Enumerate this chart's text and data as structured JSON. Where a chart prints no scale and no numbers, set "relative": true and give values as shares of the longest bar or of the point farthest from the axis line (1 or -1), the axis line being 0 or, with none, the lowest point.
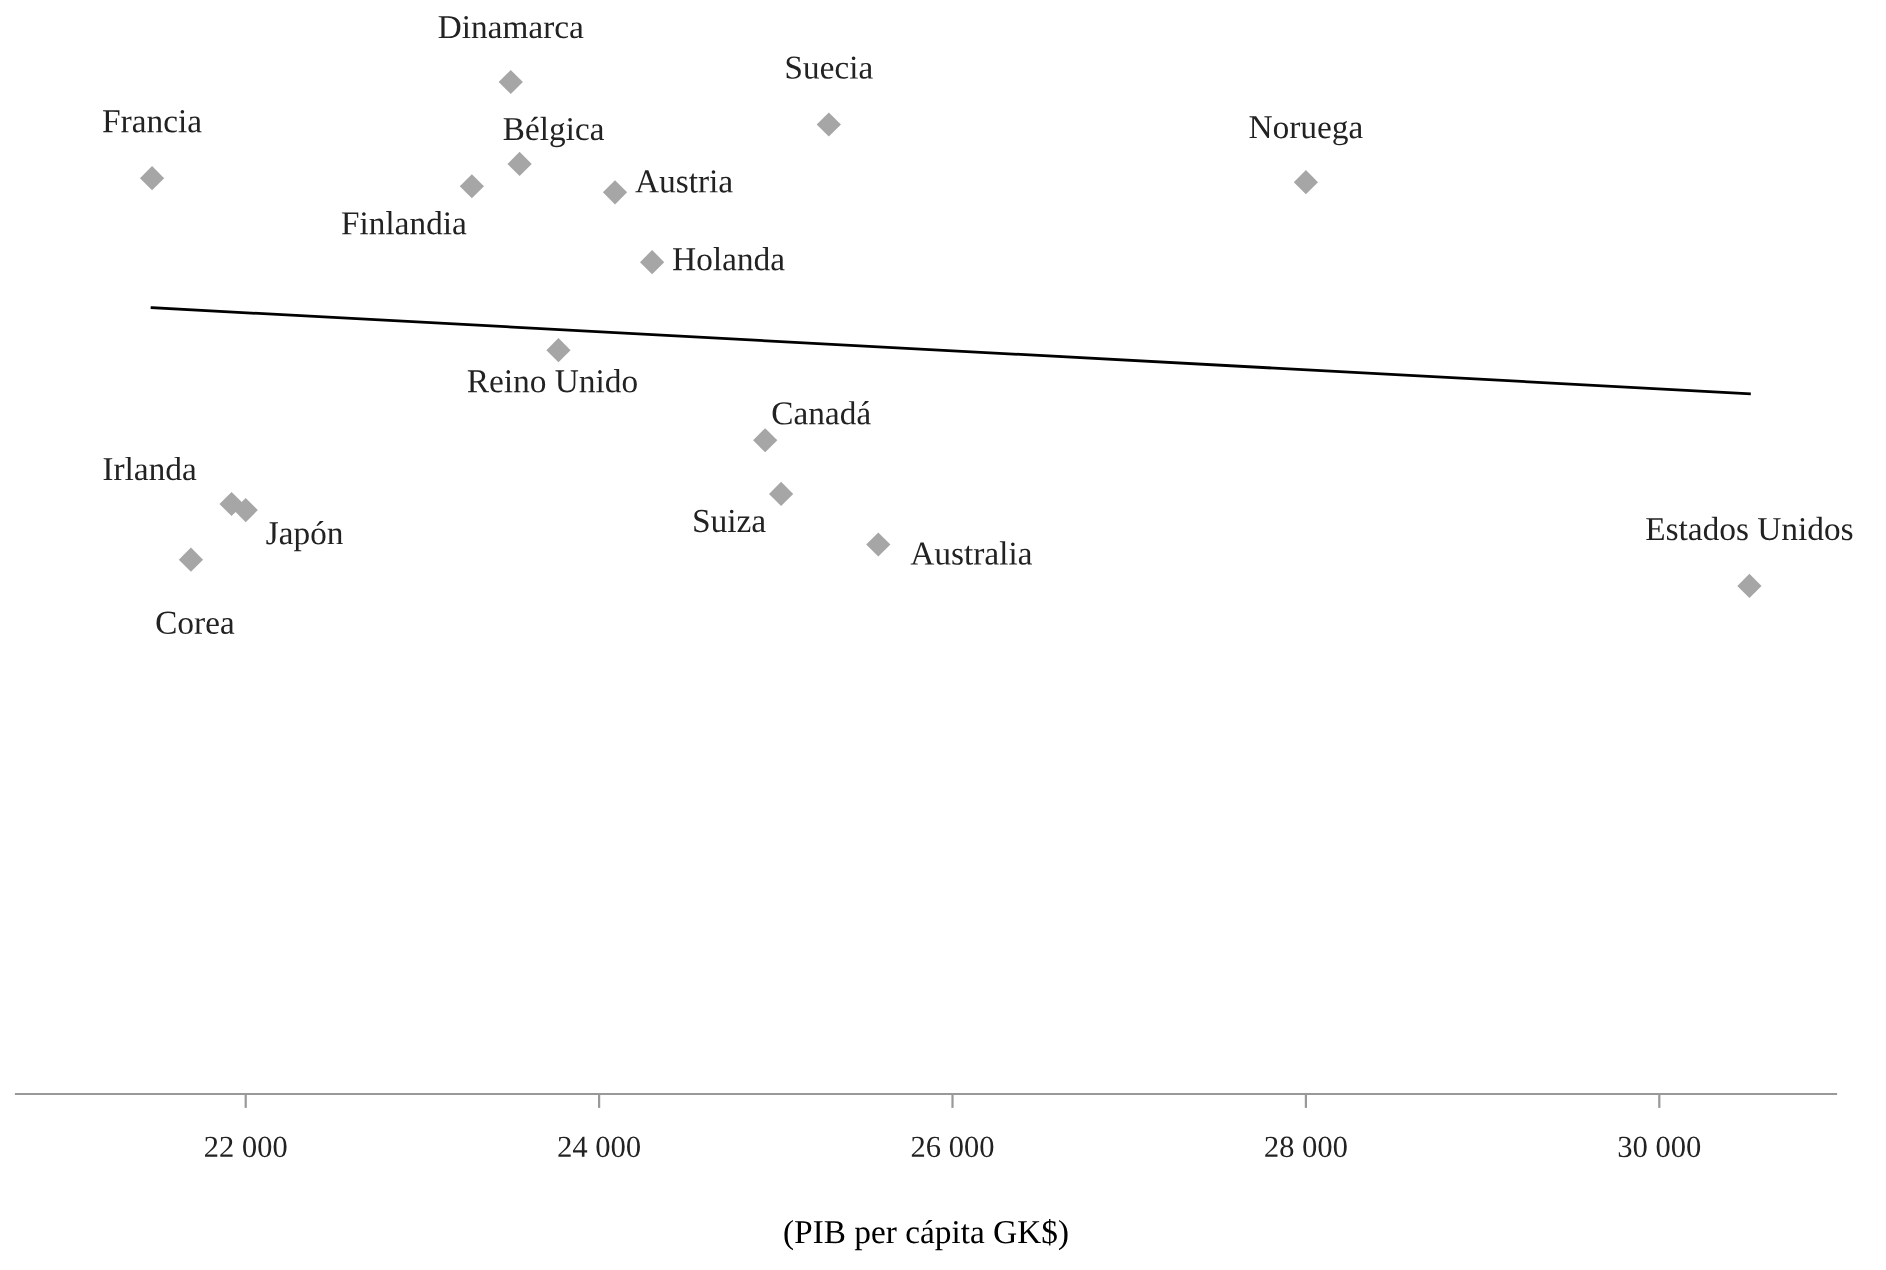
{
  "chart_data": {
    "type": "scatter",
    "relative": true,
    "xlabel": "(PIB per cápita GK$)",
    "xlim": [
      20700,
      31000
    ],
    "xticks": [
      {
        "value": 22000,
        "label": "22 000"
      },
      {
        "value": 24000,
        "label": "24 000"
      },
      {
        "value": 26000,
        "label": "26 000"
      },
      {
        "value": 28000,
        "label": "28 000"
      },
      {
        "value": 30000,
        "label": "30 000"
      }
    ],
    "tick_labels": "x",
    "grid": false,
    "legend": false,
    "marker": "diamond",
    "series": [
      {
        "color": "#a6a6a6",
        "x": [
          21470,
          23500,
          25300,
          23550,
          23280,
          24090,
          24300,
          28000,
          23770,
          24940,
          21920,
          22000,
          21690,
          25030,
          25580,
          30510
        ],
        "values": [
          0.905,
          1,
          0.958,
          0.919,
          0.897,
          0.891,
          0.822,
          0.901,
          0.735,
          0.646,
          0.583,
          0.577,
          0.528,
          0.593,
          0.543,
          0.502
        ]
      },
      {
        "type": "line",
        "color": "#000000",
        "line_style": "solid",
        "marker": "none",
        "x": [
          21470,
          30510
        ],
        "values": [
          0.777,
          0.692
        ]
      }
    ],
    "annotations": [
      {
        "text": "Francia",
        "x": 21470,
        "y": 0.905
      },
      {
        "text": "Dinamarca",
        "x": 23500,
        "y": 1
      },
      {
        "text": "Suecia",
        "x": 25300,
        "y": 0.958
      },
      {
        "text": "Bélgica",
        "x": 23550,
        "y": 0.919
      },
      {
        "text": "Finlandia",
        "x": 23280,
        "y": 0.897
      },
      {
        "text": "Austria",
        "x": 24090,
        "y": 0.891
      },
      {
        "text": "Holanda",
        "x": 24300,
        "y": 0.822
      },
      {
        "text": "Noruega",
        "x": 28000,
        "y": 0.901
      },
      {
        "text": "Reino Unido",
        "x": 23770,
        "y": 0.735
      },
      {
        "text": "Canadá",
        "x": 24940,
        "y": 0.646
      },
      {
        "text": "Irlanda",
        "x": 21920,
        "y": 0.583
      },
      {
        "text": "Japón",
        "x": 22000,
        "y": 0.577
      },
      {
        "text": "Corea",
        "x": 21690,
        "y": 0.528
      },
      {
        "text": "Suiza",
        "x": 25030,
        "y": 0.593
      },
      {
        "text": "Australia",
        "x": 25580,
        "y": 0.543
      },
      {
        "text": "Estados Unidos",
        "x": 30510,
        "y": 0.502
      }
    ]
  }
}
